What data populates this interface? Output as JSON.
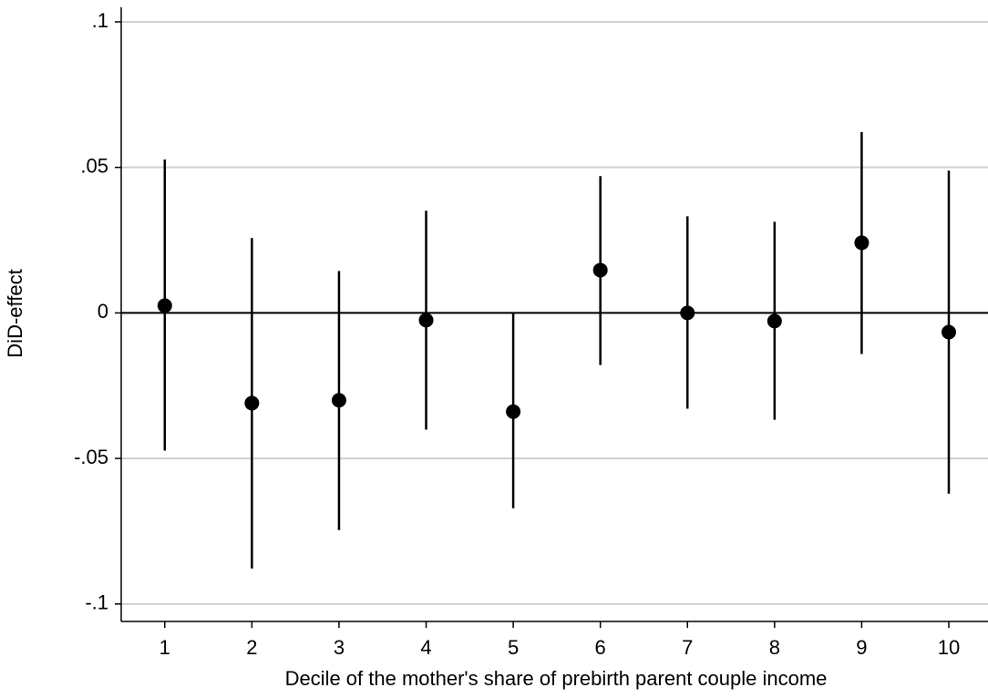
{
  "chart_data": {
    "type": "errorbar",
    "x_label": "Decile of the mother's share of prebirth parent couple income",
    "y_label": "DiD-effect",
    "x": [
      1,
      2,
      3,
      4,
      5,
      6,
      7,
      8,
      9,
      10
    ],
    "values": [
      0.0025,
      -0.031,
      -0.03,
      -0.0025,
      -0.0339,
      0.0147,
      0.0,
      -0.0028,
      0.0241,
      -0.0066
    ],
    "lower": [
      -0.0473,
      -0.0878,
      -0.0746,
      -0.0401,
      -0.0671,
      -0.0179,
      -0.0329,
      -0.0367,
      -0.0141,
      -0.0621
    ],
    "upper": [
      0.0527,
      0.0257,
      0.0144,
      0.0351,
      0.0,
      0.047,
      0.0332,
      0.0313,
      0.0621,
      0.0489
    ],
    "color": "#000000",
    "reference_line": 0,
    "xlim": [
      0.5,
      10.45
    ],
    "xticks": [
      1,
      2,
      3,
      4,
      5,
      6,
      7,
      8,
      9,
      10
    ],
    "ylim": [
      -0.106,
      0.105
    ],
    "yticks": [
      {
        "value": -0.1,
        "label": "-.1"
      },
      {
        "value": -0.05,
        "label": "-.05"
      },
      0,
      {
        "value": 0.05,
        "label": ".05"
      },
      {
        "value": 0.1,
        "label": ".1"
      }
    ],
    "grid": true
  }
}
